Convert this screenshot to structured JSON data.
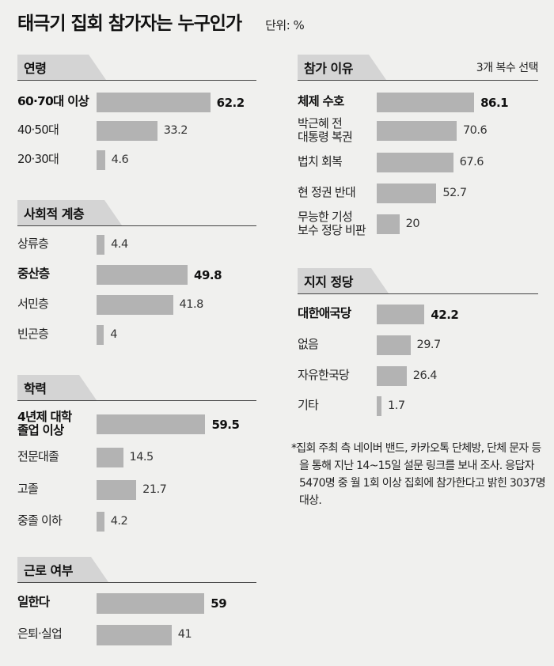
{
  "title": "태극기 집회 참가자는 누구인가",
  "unit": "단위: %",
  "footnote": "*집회 주최 측 네이버 밴드, 카카오톡 단체방, 단체 문자 등을 통해 지난 14~15일 설문 링크를 보내 조사. 응답자 5470명 중 월 1회 이상 집회에 참가한다고 밝힌 3037명 대상.",
  "chart_data": [
    {
      "type": "bar",
      "title": "연령",
      "categories": [
        "60·70대 이상",
        "40·50대",
        "20·30대"
      ],
      "values": [
        62.2,
        33.2,
        4.6
      ],
      "value_labels": [
        "62.2",
        "33.2",
        "4.6"
      ],
      "highlight": [
        true,
        false,
        false
      ]
    },
    {
      "type": "bar",
      "title": "사회적 계층",
      "categories": [
        "상류층",
        "중산층",
        "서민층",
        "빈곤층"
      ],
      "values": [
        4.4,
        49.8,
        41.8,
        4
      ],
      "value_labels": [
        "4.4",
        "49.8",
        "41.8",
        "4"
      ],
      "highlight": [
        false,
        true,
        false,
        false
      ]
    },
    {
      "type": "bar",
      "title": "학력",
      "categories": [
        "4년제 대학\n졸업 이상",
        "전문대졸",
        "고졸",
        "중졸 이하"
      ],
      "values": [
        59.5,
        14.5,
        21.7,
        4.2
      ],
      "value_labels": [
        "59.5",
        "14.5",
        "21.7",
        "4.2"
      ],
      "highlight": [
        true,
        false,
        false,
        false
      ]
    },
    {
      "type": "bar",
      "title": "근로 여부",
      "categories": [
        "일한다",
        "은퇴·실업"
      ],
      "values": [
        59,
        41
      ],
      "value_labels": [
        "59",
        "41"
      ],
      "highlight": [
        true,
        false
      ]
    },
    {
      "type": "bar",
      "title": "참가 이유",
      "note": "3개 복수 선택",
      "categories": [
        "체제 수호",
        "박근혜 전\n대통령 복권",
        "법치 회복",
        "현 정권 반대",
        "무능한 기성\n보수 정당 비판"
      ],
      "values": [
        86.1,
        70.6,
        67.6,
        52.7,
        20
      ],
      "value_labels": [
        "86.1",
        "70.6",
        "67.6",
        "52.7",
        "20"
      ],
      "highlight": [
        true,
        false,
        false,
        false,
        false
      ]
    },
    {
      "type": "bar",
      "title": "지지 정당",
      "categories": [
        "대한애국당",
        "없음",
        "자유한국당",
        "기타"
      ],
      "values": [
        42.2,
        29.7,
        26.4,
        1.7
      ],
      "value_labels": [
        "42.2",
        "29.7",
        "26.4",
        "1.7"
      ],
      "highlight": [
        true,
        false,
        false,
        false
      ]
    }
  ]
}
